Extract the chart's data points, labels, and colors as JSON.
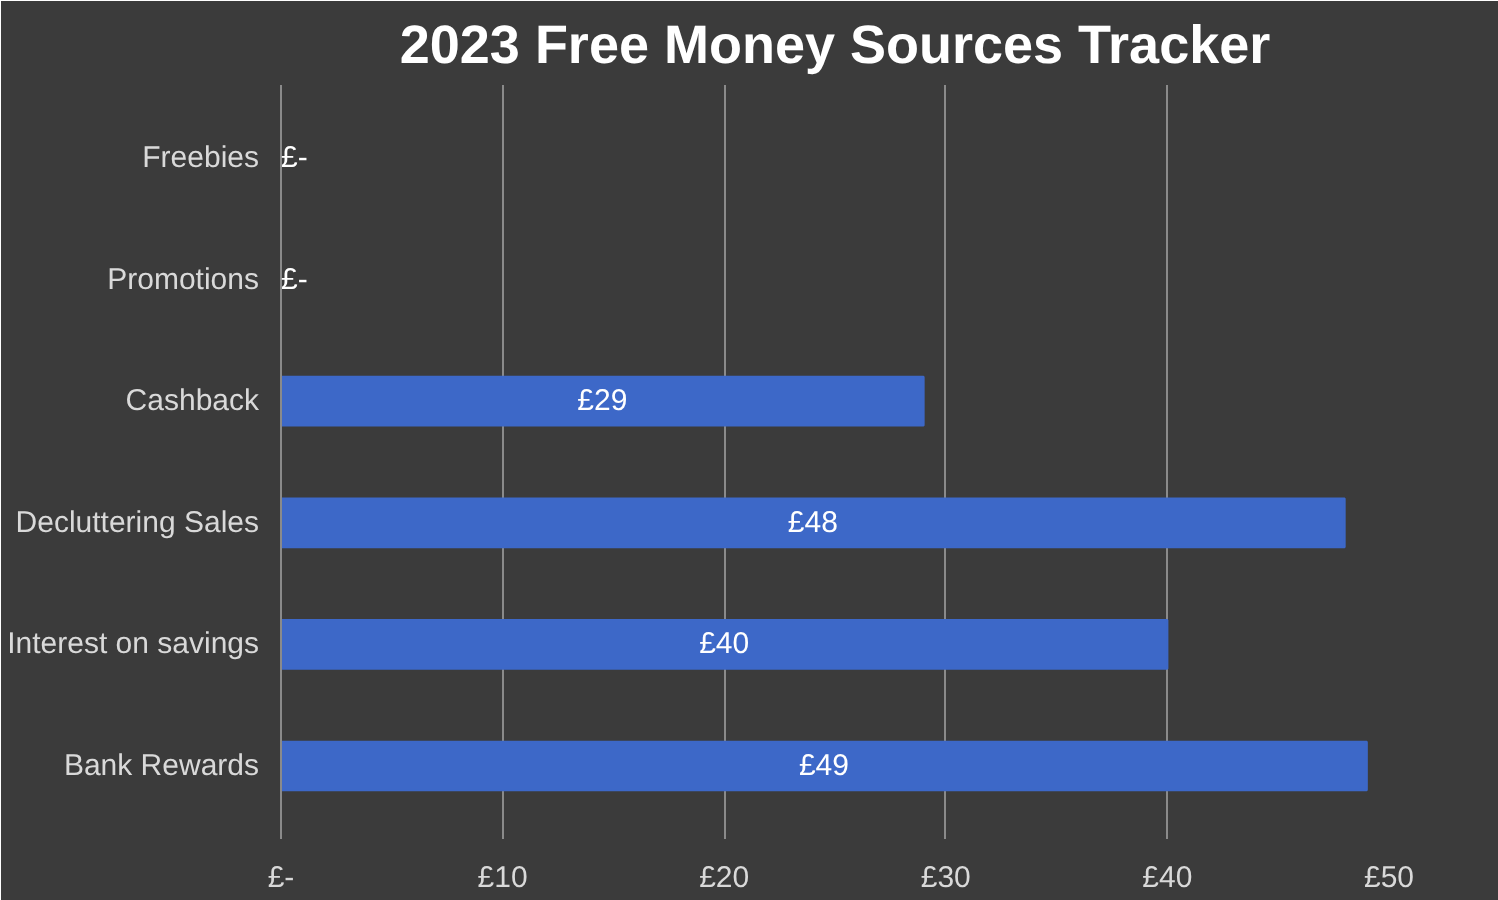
{
  "chart_data": {
    "type": "bar",
    "orientation": "horizontal",
    "title": "2023 Free Money Sources Tracker",
    "categories": [
      "Freebies",
      "Promotions",
      "Cashback",
      "Decluttering Sales",
      "Interest on savings",
      "Bank Rewards"
    ],
    "values": [
      0,
      0,
      29,
      48,
      40,
      49
    ],
    "value_labels": [
      "£-",
      "£-",
      "£29",
      "£48",
      "£40",
      "£49"
    ],
    "color": "#3d68c8",
    "xlim": [
      0,
      50
    ],
    "xticks": [
      {
        "value": 0,
        "label": "£-"
      },
      {
        "value": 10,
        "label": "£10"
      },
      {
        "value": 20,
        "label": "£20"
      },
      {
        "value": 30,
        "label": "£30"
      },
      {
        "value": 40,
        "label": "£40"
      },
      {
        "value": 50,
        "label": "£50"
      }
    ],
    "grid": "x"
  }
}
